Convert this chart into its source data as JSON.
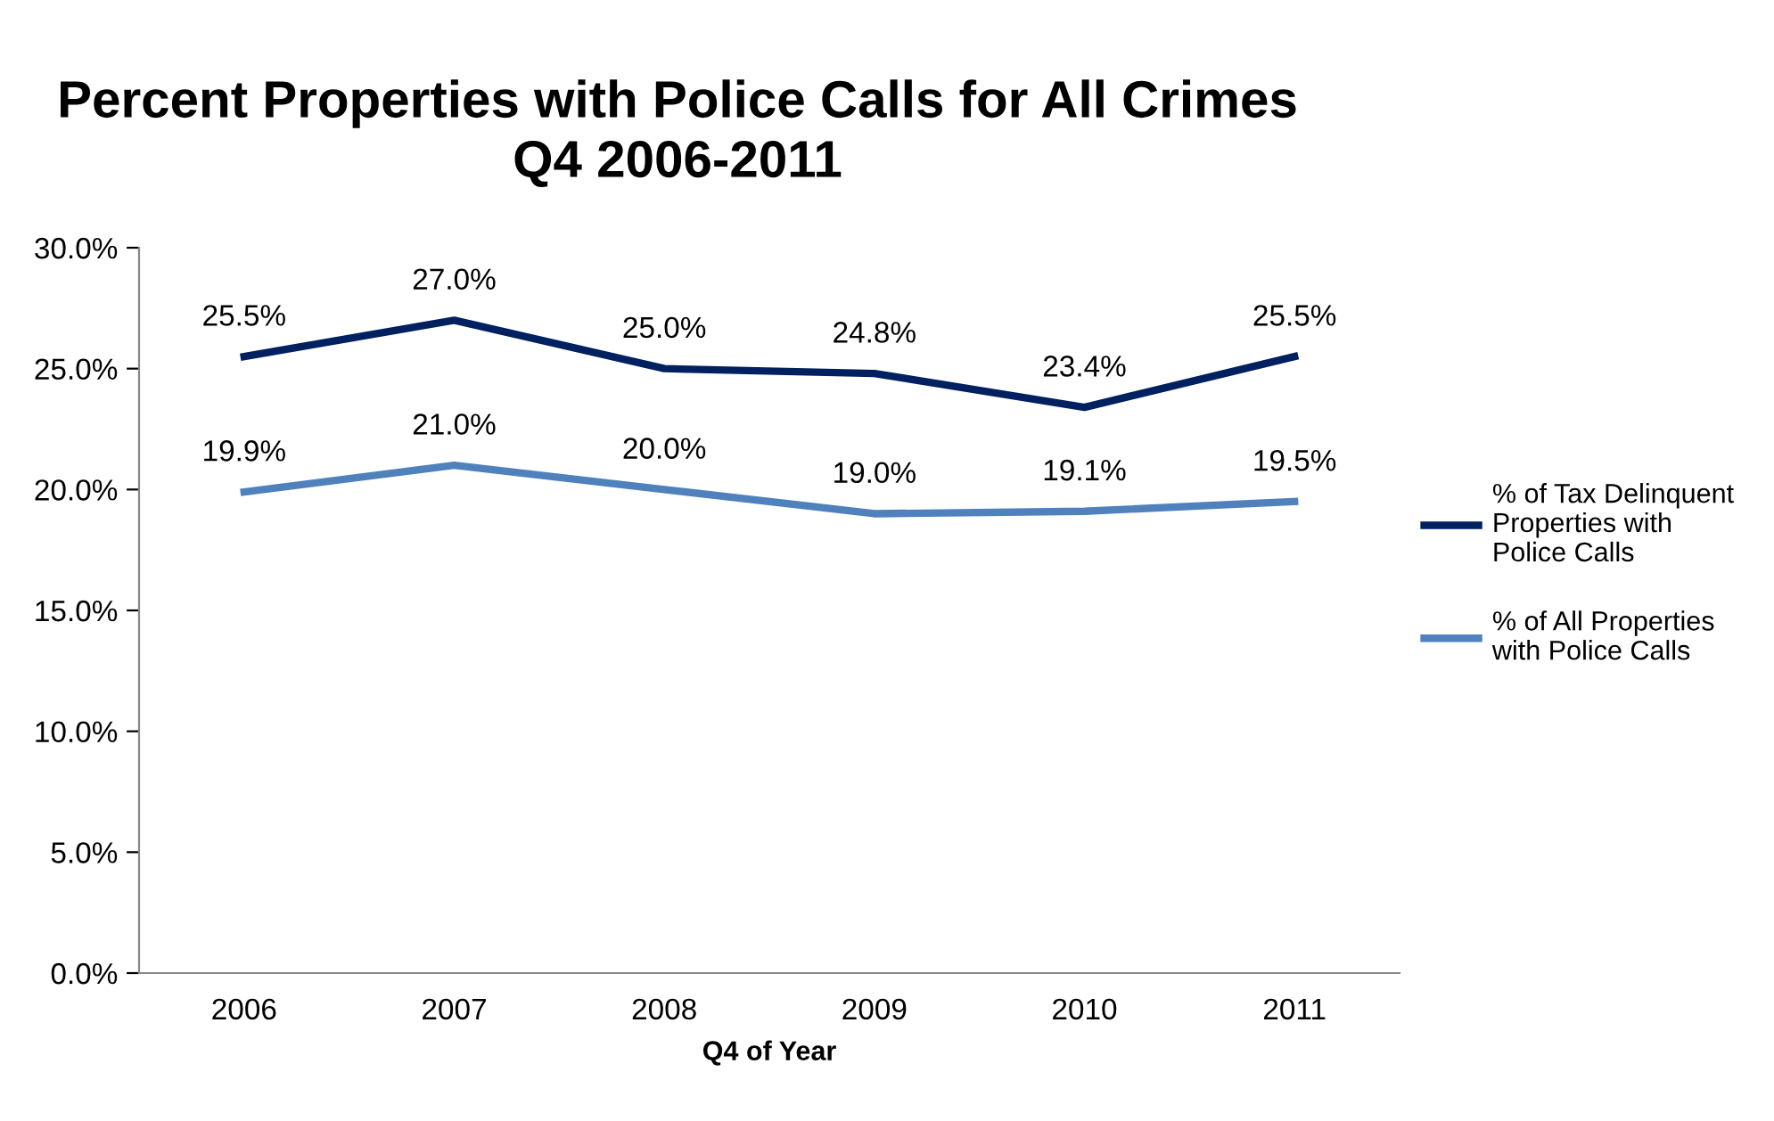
{
  "chart_data": {
    "type": "line",
    "title": "Percent Properties with Police Calls for All Crimes\nQ4 2006-2011",
    "xlabel": "Q4 of Year",
    "categories": [
      "2006",
      "2007",
      "2008",
      "2009",
      "2010",
      "2011"
    ],
    "series": [
      {
        "name": "% of Tax Delinquent\nProperties with\nPolice Calls",
        "color": "#002060",
        "values": [
          25.5,
          27.0,
          25.0,
          24.8,
          23.4,
          25.5
        ],
        "value_labels": [
          "25.5%",
          "27.0%",
          "25.0%",
          "24.8%",
          "23.4%",
          "25.5%"
        ]
      },
      {
        "name": "% of All Properties\nwith Police Calls",
        "color": "#4f81bd",
        "values": [
          19.9,
          21.0,
          20.0,
          19.0,
          19.1,
          19.5
        ],
        "value_labels": [
          "19.9%",
          "21.0%",
          "20.0%",
          "19.0%",
          "19.1%",
          "19.5%"
        ]
      }
    ],
    "ylim": [
      0,
      30
    ],
    "yticks": [
      {
        "value": 0,
        "label": "0.0%"
      },
      {
        "value": 5,
        "label": "5.0%"
      },
      {
        "value": 10,
        "label": "10.0%"
      },
      {
        "value": 15,
        "label": "15.0%"
      },
      {
        "value": 20,
        "label": "20.0%"
      },
      {
        "value": 25,
        "label": "25.0%"
      },
      {
        "value": 30,
        "label": "30.0%"
      }
    ],
    "grid": false,
    "legend": "right",
    "marker": "none",
    "line_style": "solid"
  }
}
